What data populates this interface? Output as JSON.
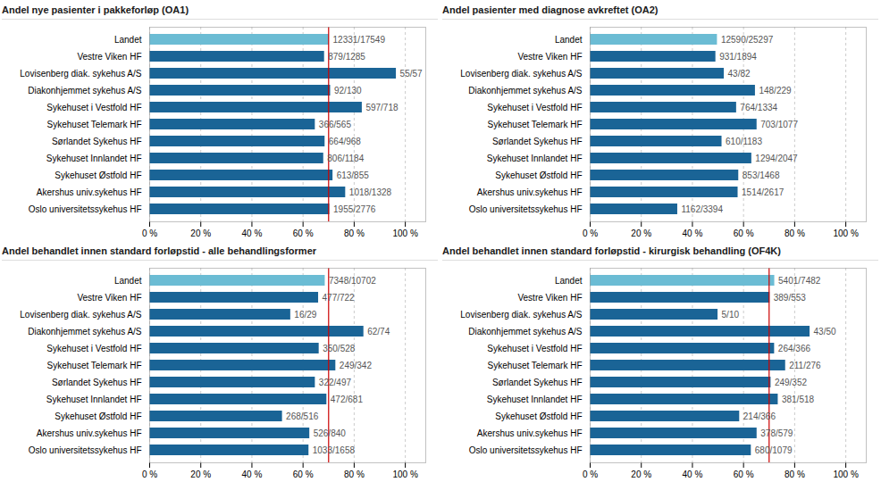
{
  "chart_data": [
    {
      "type": "bar",
      "orientation": "horizontal",
      "title": "Andel nye pasienter i pakkeforløp (OA1)",
      "categories": [
        "Landet",
        "Vestre Viken HF",
        "Lovisenberg diak. sykehus A/S",
        "Diakonhjemmet sykehus A/S",
        "Sykehuset i Vestfold HF",
        "Sykehuset Telemark HF",
        "Sørlandet Sykehus HF",
        "Sykehuset Innlandet HF",
        "Sykehuset Østfold HF",
        "Akershus univ.sykehus HF",
        "Oslo universitetssykehus HF"
      ],
      "values": [
        70.27,
        68.4,
        96.49,
        70.77,
        83.15,
        64.78,
        68.6,
        68.07,
        71.7,
        76.66,
        70.43
      ],
      "value_labels": [
        "12331/17549",
        "879/1285",
        "55/57",
        "92/130",
        "597/718",
        "366/565",
        "664/968",
        "806/1184",
        "613/855",
        "1018/1328",
        "1955/2776"
      ],
      "colors": [
        "#6BBCD4",
        "#1A6496",
        "#1A6496",
        "#1A6496",
        "#1A6496",
        "#1A6496",
        "#1A6496",
        "#1A6496",
        "#1A6496",
        "#1A6496",
        "#1A6496"
      ],
      "xlim": [
        0,
        108
      ],
      "xticks": [
        {
          "value": 0,
          "label": "0 %"
        },
        {
          "value": 20,
          "label": "20 %"
        },
        {
          "value": 40,
          "label": "40 %"
        },
        {
          "value": 60,
          "label": "60 %"
        },
        {
          "value": 80,
          "label": "80 %"
        },
        {
          "value": 100,
          "label": "100 %"
        }
      ],
      "grid": true,
      "data_labels": true,
      "ref_line": {
        "value": 70,
        "color": "#CC0000"
      }
    },
    {
      "type": "bar",
      "orientation": "horizontal",
      "title": "Andel pasienter med diagnose avkreftet (OA2)",
      "categories": [
        "Landet",
        "Vestre Viken HF",
        "Lovisenberg diak. sykehus A/S",
        "Diakonhjemmet sykehus A/S",
        "Sykehuset i Vestfold HF",
        "Sykehuset Telemark HF",
        "Sørlandet Sykehus HF",
        "Sykehuset Innlandet HF",
        "Sykehuset Østfold HF",
        "Akershus univ.sykehus HF",
        "Oslo universitetssykehus HF"
      ],
      "values": [
        49.77,
        49.16,
        52.44,
        64.63,
        57.27,
        65.27,
        51.56,
        63.21,
        58.11,
        57.85,
        34.24
      ],
      "value_labels": [
        "12590/25297",
        "931/1894",
        "43/82",
        "148/229",
        "764/1334",
        "703/1077",
        "610/1183",
        "1294/2047",
        "853/1468",
        "1514/2617",
        "1162/3394"
      ],
      "colors": [
        "#6BBCD4",
        "#1A6496",
        "#1A6496",
        "#1A6496",
        "#1A6496",
        "#1A6496",
        "#1A6496",
        "#1A6496",
        "#1A6496",
        "#1A6496",
        "#1A6496"
      ],
      "xlim": [
        0,
        108
      ],
      "xticks": [
        {
          "value": 0,
          "label": "0 %"
        },
        {
          "value": 20,
          "label": "20 %"
        },
        {
          "value": 40,
          "label": "40 %"
        },
        {
          "value": 60,
          "label": "60 %"
        },
        {
          "value": 80,
          "label": "80 %"
        },
        {
          "value": 100,
          "label": "100 %"
        }
      ],
      "grid": true,
      "data_labels": true
    },
    {
      "type": "bar",
      "orientation": "horizontal",
      "title": "Andel behandlet innen standard forløpstid - alle behandlingsformer",
      "categories": [
        "Landet",
        "Vestre Viken HF",
        "Lovisenberg diak. sykehus A/S",
        "Diakonhjemmet sykehus A/S",
        "Sykehuset i Vestfold HF",
        "Sykehuset Telemark HF",
        "Sørlandet Sykehus HF",
        "Sykehuset Innlandet HF",
        "Sykehuset Østfold HF",
        "Akershus univ.sykehus HF",
        "Oslo universitetssykehus HF"
      ],
      "values": [
        68.66,
        66.07,
        55.17,
        83.78,
        66.29,
        72.81,
        64.79,
        69.31,
        51.94,
        62.62,
        62.3
      ],
      "value_labels": [
        "7348/10702",
        "477/722",
        "16/29",
        "62/74",
        "350/528",
        "249/342",
        "322/497",
        "472/681",
        "268/516",
        "526/840",
        "1033/1658"
      ],
      "colors": [
        "#6BBCD4",
        "#1A6496",
        "#1A6496",
        "#1A6496",
        "#1A6496",
        "#1A6496",
        "#1A6496",
        "#1A6496",
        "#1A6496",
        "#1A6496",
        "#1A6496"
      ],
      "xlim": [
        0,
        108
      ],
      "xticks": [
        {
          "value": 0,
          "label": "0 %"
        },
        {
          "value": 20,
          "label": "20 %"
        },
        {
          "value": 40,
          "label": "40 %"
        },
        {
          "value": 60,
          "label": "60 %"
        },
        {
          "value": 80,
          "label": "80 %"
        },
        {
          "value": 100,
          "label": "100 %"
        }
      ],
      "grid": true,
      "data_labels": true,
      "ref_line": {
        "value": 70,
        "color": "#CC0000"
      }
    },
    {
      "type": "bar",
      "orientation": "horizontal",
      "title": "Andel behandlet innen standard forløpstid - kirurgisk behandling (OF4K)",
      "categories": [
        "Landet",
        "Vestre Viken HF",
        "Lovisenberg diak. sykehus A/S",
        "Diakonhjemmet sykehus A/S",
        "Sykehuset i Vestfold HF",
        "Sykehuset Telemark HF",
        "Sørlandet Sykehus HF",
        "Sykehuset Innlandet HF",
        "Sykehuset Østfold HF",
        "Akershus univ.sykehus HF",
        "Oslo universitetssykehus HF"
      ],
      "values": [
        72.19,
        70.34,
        50,
        86,
        72.13,
        76.45,
        70.74,
        73.55,
        58.47,
        65.28,
        63.02
      ],
      "value_labels": [
        "5401/7482",
        "389/553",
        "5/10",
        "43/50",
        "264/366",
        "211/276",
        "249/352",
        "381/518",
        "214/366",
        "378/579",
        "680/1079"
      ],
      "colors": [
        "#6BBCD4",
        "#1A6496",
        "#1A6496",
        "#1A6496",
        "#1A6496",
        "#1A6496",
        "#1A6496",
        "#1A6496",
        "#1A6496",
        "#1A6496",
        "#1A6496"
      ],
      "xlim": [
        0,
        108
      ],
      "xticks": [
        {
          "value": 0,
          "label": "0 %"
        },
        {
          "value": 20,
          "label": "20 %"
        },
        {
          "value": 40,
          "label": "40 %"
        },
        {
          "value": 60,
          "label": "60 %"
        },
        {
          "value": 80,
          "label": "80 %"
        },
        {
          "value": 100,
          "label": "100 %"
        }
      ],
      "grid": true,
      "data_labels": true,
      "ref_line": {
        "value": 70,
        "color": "#CC0000"
      }
    }
  ]
}
